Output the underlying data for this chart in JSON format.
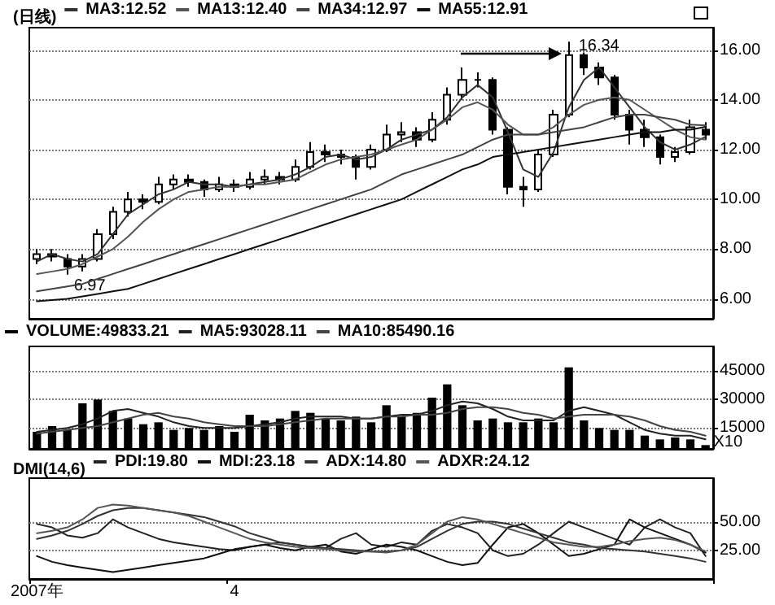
{
  "chart_data": [
    {
      "type": "candlestick",
      "title": "(日线)",
      "color": "#000000",
      "legend": "top left",
      "grid": "y",
      "marker": "none",
      "tick_labels": "y",
      "ohlc": [
        [
          7.6,
          8.0,
          7.4,
          7.8
        ],
        [
          7.8,
          8.0,
          7.5,
          7.7
        ],
        [
          7.6,
          7.8,
          6.97,
          7.3
        ],
        [
          7.3,
          7.8,
          7.1,
          7.6
        ],
        [
          7.6,
          8.8,
          7.5,
          8.6
        ],
        [
          8.6,
          9.7,
          8.4,
          9.5
        ],
        [
          9.5,
          10.3,
          9.3,
          10.0
        ],
        [
          10.0,
          10.2,
          9.6,
          9.9
        ],
        [
          9.9,
          10.9,
          9.8,
          10.6
        ],
        [
          10.6,
          11.0,
          10.4,
          10.8
        ],
        [
          10.8,
          11.0,
          10.5,
          10.7
        ],
        [
          10.7,
          10.8,
          10.1,
          10.4
        ],
        [
          10.4,
          10.9,
          10.3,
          10.6
        ],
        [
          10.6,
          10.8,
          10.3,
          10.5
        ],
        [
          10.5,
          11.1,
          10.4,
          10.8
        ],
        [
          10.8,
          11.2,
          10.6,
          10.9
        ],
        [
          10.9,
          11.1,
          10.6,
          10.8
        ],
        [
          10.8,
          11.6,
          10.7,
          11.3
        ],
        [
          11.3,
          12.3,
          11.2,
          11.9
        ],
        [
          11.9,
          12.2,
          11.5,
          11.8
        ],
        [
          11.8,
          12.0,
          11.4,
          11.7
        ],
        [
          11.7,
          11.8,
          10.8,
          11.3
        ],
        [
          11.3,
          12.2,
          11.2,
          12.0
        ],
        [
          12.0,
          13.0,
          11.9,
          12.6
        ],
        [
          12.6,
          13.1,
          12.3,
          12.7
        ],
        [
          12.7,
          12.9,
          12.1,
          12.4
        ],
        [
          12.4,
          13.5,
          12.3,
          13.2
        ],
        [
          13.2,
          14.5,
          13.0,
          14.2
        ],
        [
          14.2,
          15.3,
          14.0,
          14.8
        ],
        [
          14.8,
          15.1,
          14.5,
          14.8
        ],
        [
          14.8,
          14.9,
          12.6,
          12.8
        ],
        [
          12.8,
          12.9,
          10.2,
          10.5
        ],
        [
          10.5,
          10.9,
          9.7,
          10.4
        ],
        [
          10.4,
          12.0,
          10.3,
          11.8
        ],
        [
          11.8,
          13.6,
          11.7,
          13.4
        ],
        [
          13.4,
          16.34,
          13.3,
          15.8
        ],
        [
          15.8,
          15.9,
          15.0,
          15.3
        ],
        [
          15.3,
          15.5,
          14.6,
          14.9
        ],
        [
          14.9,
          15.0,
          13.2,
          13.4
        ],
        [
          13.4,
          13.6,
          12.2,
          12.8
        ],
        [
          12.8,
          13.2,
          12.1,
          12.5
        ],
        [
          12.5,
          12.6,
          11.4,
          11.7
        ],
        [
          11.7,
          12.1,
          11.5,
          11.9
        ],
        [
          11.9,
          13.2,
          11.8,
          12.9
        ],
        [
          12.8,
          13.1,
          12.4,
          12.6
        ]
      ],
      "series": [
        {
          "name": "MA3:12.52",
          "type": "line",
          "color": "#333333",
          "values": [
            7.5,
            7.8,
            7.6,
            7.5,
            7.8,
            8.6,
            9.4,
            9.8,
            10.2,
            10.4,
            10.7,
            10.6,
            10.6,
            10.5,
            10.6,
            10.7,
            10.8,
            11.0,
            11.3,
            11.7,
            11.8,
            11.6,
            11.7,
            12.0,
            12.4,
            12.6,
            12.8,
            13.3,
            14.1,
            14.6,
            14.1,
            12.7,
            11.2,
            10.9,
            11.9,
            13.7,
            14.8,
            15.3,
            14.5,
            13.7,
            12.9,
            12.3,
            12.0,
            12.2,
            12.52
          ]
        },
        {
          "name": "MA13:12.40",
          "type": "line",
          "color": "#555555",
          "values": [
            7.0,
            7.1,
            7.2,
            7.4,
            7.7,
            8.0,
            8.5,
            9.1,
            9.6,
            10.0,
            10.3,
            10.4,
            10.5,
            10.5,
            10.6,
            10.6,
            10.7,
            10.8,
            11.1,
            11.4,
            11.6,
            11.7,
            11.8,
            12.0,
            12.2,
            12.4,
            12.8,
            13.2,
            13.7,
            13.9,
            13.6,
            13.0,
            12.6,
            12.6,
            12.9,
            13.4,
            13.8,
            14.0,
            14.1,
            14.0,
            13.6,
            13.2,
            12.8,
            12.5,
            12.4
          ]
        },
        {
          "name": "MA34:12.97",
          "type": "line",
          "color": "#444444",
          "values": [
            6.3,
            6.4,
            6.5,
            6.6,
            6.8,
            7.0,
            7.2,
            7.4,
            7.6,
            7.8,
            8.0,
            8.2,
            8.4,
            8.6,
            8.8,
            9.0,
            9.2,
            9.4,
            9.6,
            9.8,
            10.0,
            10.2,
            10.4,
            10.7,
            11.0,
            11.2,
            11.4,
            11.6,
            11.8,
            12.1,
            12.4,
            12.6,
            12.6,
            12.6,
            12.7,
            12.8,
            12.9,
            13.1,
            13.3,
            13.4,
            13.4,
            13.3,
            13.2,
            13.0,
            12.97
          ]
        },
        {
          "name": "MA55:12.91",
          "type": "line",
          "color": "#111111",
          "values": [
            5.9,
            5.95,
            6.0,
            6.1,
            6.2,
            6.3,
            6.4,
            6.6,
            6.8,
            7.0,
            7.2,
            7.4,
            7.6,
            7.8,
            8.0,
            8.2,
            8.4,
            8.6,
            8.8,
            9.0,
            9.2,
            9.4,
            9.6,
            9.8,
            10.0,
            10.3,
            10.6,
            10.9,
            11.2,
            11.4,
            11.7,
            11.8,
            11.9,
            12.0,
            12.1,
            12.2,
            12.3,
            12.4,
            12.5,
            12.6,
            12.7,
            12.7,
            12.8,
            12.8,
            12.91
          ]
        }
      ],
      "ylim": [
        5.2,
        16.9
      ],
      "yticks": [
        {
          "value": 6,
          "label": "6.00"
        },
        {
          "value": 8,
          "label": "8.00"
        },
        {
          "value": 10,
          "label": "10.00"
        },
        {
          "value": 12,
          "label": "12.00"
        },
        {
          "value": 14,
          "label": "14.00"
        },
        {
          "value": 16,
          "label": "16.00"
        }
      ],
      "annotations": [
        "16.34",
        "6.97"
      ]
    },
    {
      "type": "bar",
      "legend": "top left",
      "grid": "y",
      "marker": "none",
      "tick_labels": "y",
      "series": [
        {
          "name": "VOLUME:49833.21",
          "type": "bar",
          "color": "#000000",
          "values": [
            13000,
            16000,
            14000,
            28000,
            30000,
            24000,
            20000,
            17000,
            18000,
            14000,
            15000,
            14000,
            16000,
            13000,
            22000,
            19000,
            20000,
            24000,
            23000,
            20000,
            19000,
            21000,
            18000,
            27000,
            21000,
            23000,
            31000,
            38000,
            27000,
            19000,
            20000,
            18000,
            18000,
            20000,
            18000,
            47000,
            19000,
            15000,
            14000,
            14000,
            11000,
            9000,
            10000,
            9000,
            6000
          ]
        },
        {
          "name": "MA5:93028.11",
          "type": "line",
          "color": "#222222",
          "values": [
            13000,
            14000,
            15000,
            17000,
            20000,
            24000,
            25000,
            23000,
            21000,
            18000,
            16000,
            15000,
            15000,
            15000,
            16000,
            17000,
            18000,
            20000,
            21000,
            21000,
            21000,
            20000,
            20000,
            21000,
            22000,
            22000,
            24000,
            27000,
            29000,
            28000,
            25000,
            21000,
            19000,
            19000,
            19000,
            24000,
            26000,
            24000,
            22000,
            18000,
            14000,
            12000,
            11000,
            11000,
            9000
          ]
        },
        {
          "name": "MA10:85490.16",
          "type": "line",
          "color": "#444444",
          "values": [
            12000,
            13000,
            14000,
            15000,
            16000,
            18000,
            20000,
            22000,
            23000,
            21000,
            20000,
            18000,
            17000,
            16000,
            16000,
            16000,
            17000,
            18000,
            19000,
            20000,
            20000,
            20000,
            20000,
            21000,
            21000,
            22000,
            22000,
            23000,
            25000,
            26000,
            26000,
            25000,
            23000,
            22000,
            20000,
            21000,
            22000,
            22000,
            22000,
            21000,
            19000,
            16000,
            14000,
            13000,
            11000
          ]
        }
      ],
      "ylim": [
        4000,
        58000
      ],
      "yticks": [
        15000,
        30000,
        45000
      ],
      "annotations": [
        "X10"
      ]
    },
    {
      "type": "line",
      "title": "DMI(14,6)",
      "legend": "top left",
      "grid": "y",
      "marker": "none",
      "categories": [
        "2007年",
        null,
        null,
        null,
        null,
        null,
        null,
        null,
        null,
        null,
        null,
        null,
        null,
        "4",
        null,
        null,
        null,
        null,
        null,
        null,
        null,
        null,
        null,
        null,
        null,
        null,
        null,
        null,
        null,
        null,
        null,
        null,
        null,
        null,
        null,
        null,
        null,
        null,
        null,
        null,
        null,
        null,
        null,
        null,
        null
      ],
      "series": [
        {
          "name": "PDI:19.80",
          "color": "#222222",
          "values": [
            48,
            45,
            38,
            36,
            40,
            52,
            45,
            40,
            35,
            32,
            30,
            28,
            26,
            25,
            28,
            30,
            32,
            30,
            28,
            27,
            35,
            40,
            30,
            28,
            32,
            30,
            42,
            48,
            45,
            40,
            25,
            20,
            22,
            30,
            40,
            50,
            45,
            40,
            35,
            30,
            45,
            52,
            45,
            40,
            20
          ]
        },
        {
          "name": "MDI:23.18",
          "color": "#111111",
          "values": [
            20,
            15,
            12,
            10,
            8,
            6,
            8,
            10,
            12,
            14,
            16,
            18,
            22,
            26,
            28,
            30,
            27,
            25,
            28,
            30,
            24,
            22,
            26,
            30,
            28,
            25,
            20,
            15,
            12,
            14,
            30,
            45,
            48,
            40,
            30,
            20,
            22,
            26,
            30,
            52,
            45,
            40,
            35,
            30,
            23
          ]
        },
        {
          "name": "ADX:14.80",
          "color": "#333333",
          "values": [
            35,
            38,
            42,
            48,
            55,
            60,
            62,
            62,
            60,
            58,
            56,
            54,
            50,
            46,
            40,
            36,
            32,
            30,
            28,
            27,
            26,
            25,
            24,
            24,
            25,
            28,
            35,
            42,
            48,
            50,
            50,
            48,
            44,
            40,
            36,
            32,
            30,
            27,
            26,
            25,
            24,
            22,
            20,
            18,
            15
          ]
        },
        {
          "name": "ADXR:24.12",
          "color": "#555555",
          "values": [
            40,
            42,
            45,
            52,
            62,
            65,
            64,
            62,
            60,
            58,
            55,
            50,
            45,
            40,
            35,
            32,
            30,
            28,
            27,
            26,
            25,
            24,
            24,
            23,
            25,
            30,
            40,
            50,
            54,
            52,
            48,
            44,
            40,
            36,
            32,
            30,
            28,
            28,
            30,
            33,
            35,
            36,
            34,
            30,
            24
          ]
        }
      ],
      "ylim": [
        0,
        88
      ],
      "yticks": [
        {
          "value": 25,
          "label": "25.00"
        },
        {
          "value": 50,
          "label": "50.00"
        }
      ]
    }
  ]
}
